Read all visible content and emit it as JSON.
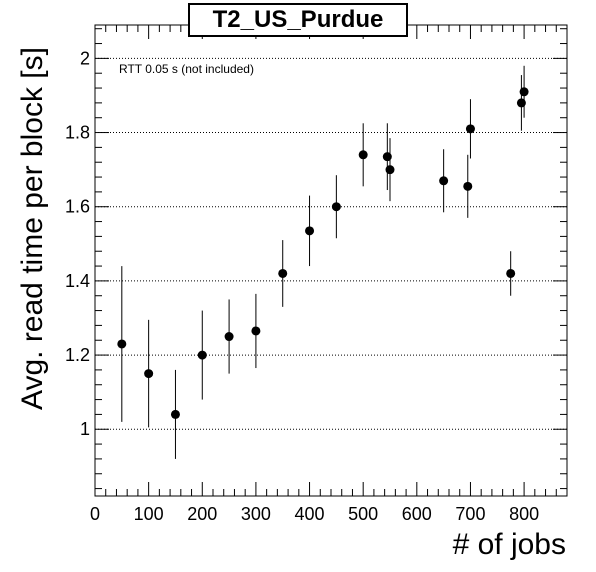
{
  "chart_data": {
    "type": "scatter",
    "title": "T2_US_Purdue",
    "xlabel": "# of jobs",
    "ylabel": "Avg. read time per block [s]",
    "annotation": "RTT 0.05 s (not included)",
    "xlim": [
      0,
      880
    ],
    "ylim": [
      0.82,
      2.09
    ],
    "xticks": [
      0,
      100,
      200,
      300,
      400,
      500,
      600,
      700,
      800
    ],
    "yticks": [
      1,
      1.2,
      1.4,
      1.6,
      1.8,
      2
    ],
    "grid": "horizontal dotted",
    "points": [
      {
        "x": 50,
        "y": 1.23,
        "err": 0.21
      },
      {
        "x": 100,
        "y": 1.15,
        "err": 0.145
      },
      {
        "x": 150,
        "y": 1.04,
        "err": 0.12
      },
      {
        "x": 200,
        "y": 1.2,
        "err": 0.12
      },
      {
        "x": 250,
        "y": 1.25,
        "err": 0.1
      },
      {
        "x": 300,
        "y": 1.265,
        "err": 0.1
      },
      {
        "x": 350,
        "y": 1.42,
        "err": 0.09
      },
      {
        "x": 400,
        "y": 1.535,
        "err": 0.095
      },
      {
        "x": 450,
        "y": 1.6,
        "err": 0.085
      },
      {
        "x": 500,
        "y": 1.74,
        "err": 0.085
      },
      {
        "x": 545,
        "y": 1.735,
        "err": 0.09
      },
      {
        "x": 550,
        "y": 1.7,
        "err": 0.085
      },
      {
        "x": 650,
        "y": 1.67,
        "err": 0.085
      },
      {
        "x": 695,
        "y": 1.655,
        "err": 0.085
      },
      {
        "x": 700,
        "y": 1.81,
        "err": 0.08
      },
      {
        "x": 775,
        "y": 1.42,
        "err": 0.06
      },
      {
        "x": 795,
        "y": 1.88,
        "err": 0.075
      },
      {
        "x": 800,
        "y": 1.91,
        "err": 0.07
      }
    ]
  }
}
